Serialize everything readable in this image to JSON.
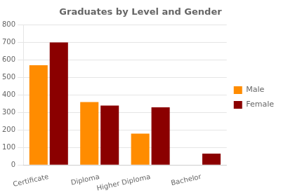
{
  "chart_data": {
    "type": "bar",
    "title": "Graduates by Level and Gender",
    "categories": [
      "Certificate",
      "Diploma",
      "Higher Diploma",
      "Bachelor"
    ],
    "series": [
      {
        "name": "Male",
        "color": "#FF8C00",
        "values": [
          570,
          360,
          180,
          0
        ]
      },
      {
        "name": "Female",
        "color": "#8B0000",
        "values": [
          700,
          340,
          330,
          65
        ]
      }
    ],
    "ylim": [
      0,
      800
    ],
    "yticks": [
      0,
      100,
      200,
      300,
      400,
      500,
      600,
      700,
      800
    ],
    "grid": true,
    "legend": "right"
  }
}
